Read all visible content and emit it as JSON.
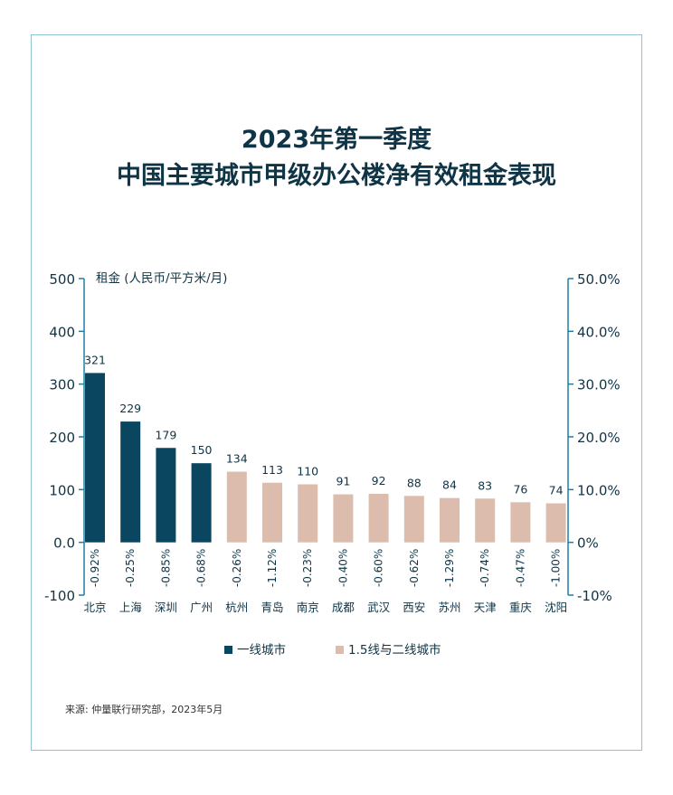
{
  "title_line1": "2023年第一季度",
  "title_line2": "中国主要城市甲级办公楼净有效租金表现",
  "source": "来源: 仲量联行研究部，2023年5月",
  "colors": {
    "tier1": "#0b4660",
    "tier2": "#dbbcad",
    "axis": "#1e7fa3",
    "text": "#0e3446"
  },
  "chart_data": {
    "type": "bar",
    "ylabel": "租金 (人民币/平方米/月)",
    "ylim": [
      -100,
      500
    ],
    "y_ticks": [
      "500",
      "400",
      "300",
      "200",
      "100",
      "0.0",
      "-100"
    ],
    "y2lim": [
      -10,
      50
    ],
    "y2_ticks": [
      "50.0%",
      "40.0%",
      "30.0%",
      "20.0%",
      "10.0%",
      "0%",
      "-10%"
    ],
    "categories": [
      "北京",
      "上海",
      "深圳",
      "广州",
      "杭州",
      "青岛",
      "南京",
      "成都",
      "武汉",
      "西安",
      "苏州",
      "天津",
      "重庆",
      "沈阳"
    ],
    "values": [
      321,
      229,
      179,
      150,
      134,
      113,
      110,
      91,
      92,
      88,
      84,
      83,
      76,
      74
    ],
    "value_labels": [
      "321",
      "229",
      "179",
      "150",
      "134",
      "113",
      "110",
      "91",
      "92",
      "88",
      "84",
      "83",
      "76",
      "74"
    ],
    "changes": [
      "-0.92%",
      "-0.25%",
      "-0.85%",
      "-0.68%",
      "-0.26%",
      "-1.12%",
      "-0.23%",
      "-0.40%",
      "-0.60%",
      "-0.62%",
      "-1.29%",
      "-0.74%",
      "-0.47%",
      "-1.00%"
    ],
    "tiers": [
      1,
      1,
      1,
      1,
      2,
      2,
      2,
      2,
      2,
      2,
      2,
      2,
      2,
      2
    ],
    "legend": [
      {
        "name": "一线城市",
        "tier": 1
      },
      {
        "name": "1.5线与二线城市",
        "tier": 2
      }
    ],
    "legend_position": "bottom"
  }
}
